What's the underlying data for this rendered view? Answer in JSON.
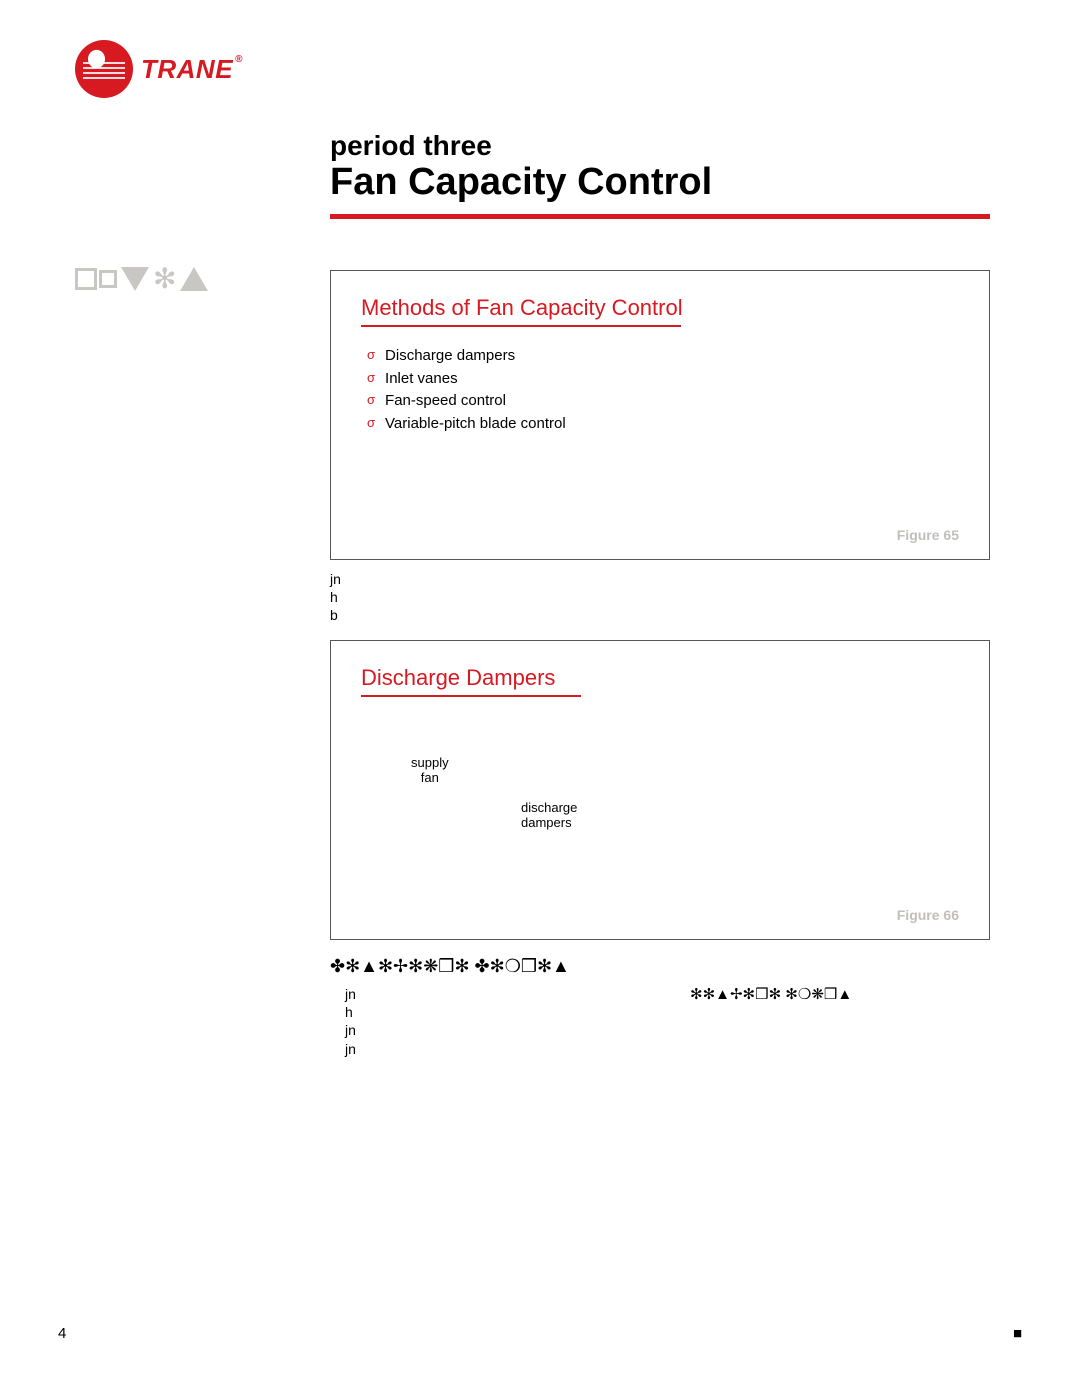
{
  "logo": {
    "brand": "TRANE"
  },
  "header": {
    "period": "period three",
    "title": "Fan Capacity Control"
  },
  "sidebar_notes_label": "notes",
  "figure1": {
    "title": "Methods of Fan Capacity Control",
    "bullets": [
      "Discharge dampers",
      "Inlet vanes",
      "Fan-speed control",
      "Variable-pitch blade control"
    ],
    "caption": "Figure 65",
    "colors": {
      "title": "#d71921",
      "rule": "#d71921",
      "border": "#555555",
      "caption": "#c1bfbc"
    }
  },
  "between_text": "jn\nh\nb",
  "figure2": {
    "title": "Discharge Dampers",
    "labels": {
      "supply_fan": "supply\nfan",
      "discharge_dampers": "discharge\ndampers"
    },
    "caption": "Figure 66",
    "colors": {
      "title": "#d71921",
      "rule": "#d71921",
      "border": "#555555",
      "caption": "#c1bfbc"
    }
  },
  "subhead_symbols": "✤✻▲✻✢✻❋❒✻ ✤✻❍❒✻▲",
  "body_stray": "jn\nh\njn\njn",
  "body_stray_right": "✻✻▲✢✻❒✻ ✻❍❋❒▲",
  "page_number": "4",
  "page_mark_right": "■",
  "palette": {
    "brand_red": "#d71921",
    "light_gray": "#c9c7c4",
    "text_black": "#000000",
    "background": "#ffffff"
  }
}
